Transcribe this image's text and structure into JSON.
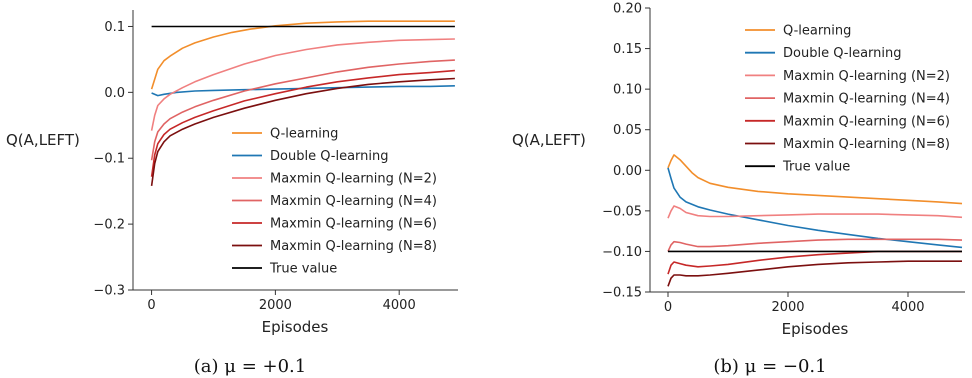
{
  "chart_data": [
    {
      "type": "line",
      "xlabel": "Episodes",
      "ylabel": "Q(A,LEFT)",
      "caption": "(a) μ = +0.1",
      "xlim": [
        -300,
        4950
      ],
      "ylim": [
        -0.3,
        0.125
      ],
      "xticks": [
        0,
        2000,
        4000
      ],
      "xtick_labels": [
        "0",
        "2000",
        "4000"
      ],
      "yticks": [
        -0.3,
        -0.2,
        -0.1,
        0.0,
        0.1
      ],
      "ytick_labels": [
        "−0.3",
        "−0.2",
        "−0.1",
        "0.0",
        "0.1"
      ],
      "legend_position": "lower-right",
      "series": [
        {
          "name": "Q-learning",
          "color": "#f28e2b",
          "x": [
            0,
            50,
            100,
            200,
            300,
            500,
            700,
            1000,
            1300,
            1600,
            2000,
            2500,
            3000,
            3500,
            4000,
            4500,
            4900
          ],
          "y": [
            0.005,
            0.02,
            0.035,
            0.048,
            0.055,
            0.067,
            0.075,
            0.084,
            0.091,
            0.096,
            0.101,
            0.105,
            0.107,
            0.108,
            0.108,
            0.108,
            0.108
          ]
        },
        {
          "name": "Double Q-learning",
          "color": "#1f77b4",
          "x": [
            0,
            100,
            200,
            400,
            700,
            1000,
            1500,
            2000,
            2500,
            3000,
            3500,
            4000,
            4500,
            4900
          ],
          "y": [
            -0.001,
            -0.005,
            -0.003,
            0.0,
            0.002,
            0.003,
            0.004,
            0.005,
            0.006,
            0.007,
            0.008,
            0.009,
            0.009,
            0.01
          ]
        },
        {
          "name": "Maxmin Q-learning (N=2)",
          "color": "#f08080",
          "x": [
            0,
            50,
            100,
            200,
            300,
            500,
            700,
            1000,
            1500,
            2000,
            2500,
            3000,
            3500,
            4000,
            4500,
            4900
          ],
          "y": [
            -0.058,
            -0.035,
            -0.02,
            -0.01,
            -0.003,
            0.007,
            0.016,
            0.027,
            0.043,
            0.056,
            0.065,
            0.072,
            0.076,
            0.079,
            0.08,
            0.081
          ]
        },
        {
          "name": "Maxmin Q-learning (N=4)",
          "color": "#e06464",
          "x": [
            0,
            50,
            100,
            200,
            300,
            500,
            700,
            1000,
            1500,
            2000,
            2500,
            3000,
            3500,
            4000,
            4500,
            4900
          ],
          "y": [
            -0.103,
            -0.075,
            -0.06,
            -0.048,
            -0.04,
            -0.03,
            -0.022,
            -0.012,
            0.002,
            0.013,
            0.022,
            0.031,
            0.038,
            0.043,
            0.047,
            0.049
          ]
        },
        {
          "name": "Maxmin Q-learning (N=6)",
          "color": "#c62828",
          "x": [
            0,
            50,
            100,
            200,
            300,
            500,
            700,
            1000,
            1500,
            2000,
            2500,
            3000,
            3500,
            4000,
            4500,
            4900
          ],
          "y": [
            -0.128,
            -0.095,
            -0.078,
            -0.064,
            -0.056,
            -0.046,
            -0.038,
            -0.028,
            -0.013,
            -0.002,
            0.008,
            0.016,
            0.022,
            0.027,
            0.03,
            0.033
          ]
        },
        {
          "name": "Maxmin Q-learning (N=8)",
          "color": "#7b0f0f",
          "x": [
            0,
            50,
            100,
            200,
            300,
            500,
            700,
            1000,
            1500,
            2000,
            2500,
            3000,
            3500,
            4000,
            4500,
            4900
          ],
          "y": [
            -0.142,
            -0.108,
            -0.09,
            -0.075,
            -0.066,
            -0.056,
            -0.048,
            -0.038,
            -0.024,
            -0.012,
            -0.002,
            0.006,
            0.012,
            0.016,
            0.019,
            0.021
          ]
        },
        {
          "name": "True value",
          "color": "#000000",
          "x": [
            0,
            4900
          ],
          "y": [
            0.1,
            0.1
          ]
        }
      ]
    },
    {
      "type": "line",
      "xlabel": "Episodes",
      "ylabel": "Q(A,LEFT)",
      "caption": "(b) μ = −0.1",
      "xlim": [
        -300,
        4950
      ],
      "ylim": [
        -0.15,
        0.2
      ],
      "xticks": [
        0,
        2000,
        4000
      ],
      "xtick_labels": [
        "0",
        "2000",
        "4000"
      ],
      "yticks": [
        -0.15,
        -0.1,
        -0.05,
        0.0,
        0.05,
        0.1,
        0.15,
        0.2
      ],
      "ytick_labels": [
        "−0.15",
        "−0.10",
        "−0.05",
        "0.00",
        "0.05",
        "0.10",
        "0.15",
        "0.20"
      ],
      "legend_position": "upper-right",
      "series": [
        {
          "name": "Q-learning",
          "color": "#f28e2b",
          "x": [
            0,
            50,
            100,
            200,
            300,
            400,
            500,
            700,
            1000,
            1500,
            2000,
            2500,
            3000,
            3500,
            4000,
            4500,
            4900
          ],
          "y": [
            0.003,
            0.012,
            0.019,
            0.013,
            0.005,
            -0.003,
            -0.009,
            -0.016,
            -0.021,
            -0.026,
            -0.029,
            -0.031,
            -0.033,
            -0.035,
            -0.037,
            -0.039,
            -0.041
          ]
        },
        {
          "name": "Double Q-learning",
          "color": "#1f77b4",
          "x": [
            0,
            50,
            100,
            200,
            300,
            500,
            700,
            1000,
            1500,
            2000,
            2500,
            3000,
            3500,
            4000,
            4500,
            4900
          ],
          "y": [
            0.003,
            -0.01,
            -0.022,
            -0.033,
            -0.039,
            -0.045,
            -0.049,
            -0.054,
            -0.061,
            -0.068,
            -0.074,
            -0.079,
            -0.084,
            -0.088,
            -0.092,
            -0.095
          ]
        },
        {
          "name": "Maxmin Q-learning (N=2)",
          "color": "#f08080",
          "x": [
            0,
            50,
            100,
            200,
            300,
            500,
            700,
            1000,
            1500,
            2000,
            2500,
            3000,
            3500,
            4000,
            4500,
            4900
          ],
          "y": [
            -0.059,
            -0.05,
            -0.044,
            -0.047,
            -0.052,
            -0.056,
            -0.057,
            -0.057,
            -0.056,
            -0.055,
            -0.054,
            -0.054,
            -0.054,
            -0.055,
            -0.056,
            -0.058
          ]
        },
        {
          "name": "Maxmin Q-learning (N=4)",
          "color": "#e06464",
          "x": [
            0,
            50,
            100,
            200,
            300,
            500,
            700,
            1000,
            1500,
            2000,
            2500,
            3000,
            3500,
            4000,
            4500,
            4900
          ],
          "y": [
            -0.1,
            -0.092,
            -0.088,
            -0.089,
            -0.091,
            -0.094,
            -0.094,
            -0.093,
            -0.09,
            -0.088,
            -0.086,
            -0.085,
            -0.085,
            -0.085,
            -0.085,
            -0.086
          ]
        },
        {
          "name": "Maxmin Q-learning (N=6)",
          "color": "#c62828",
          "x": [
            0,
            50,
            100,
            200,
            300,
            500,
            700,
            1000,
            1500,
            2000,
            2500,
            3000,
            3500,
            4000,
            4500,
            4900
          ],
          "y": [
            -0.128,
            -0.117,
            -0.113,
            -0.115,
            -0.117,
            -0.119,
            -0.118,
            -0.116,
            -0.111,
            -0.107,
            -0.104,
            -0.102,
            -0.1,
            -0.1,
            -0.1,
            -0.1
          ]
        },
        {
          "name": "Maxmin Q-learning (N=8)",
          "color": "#7b0f0f",
          "x": [
            0,
            50,
            100,
            200,
            300,
            500,
            700,
            1000,
            1500,
            2000,
            2500,
            3000,
            3500,
            4000,
            4500,
            4900
          ],
          "y": [
            -0.143,
            -0.133,
            -0.129,
            -0.129,
            -0.13,
            -0.13,
            -0.129,
            -0.127,
            -0.123,
            -0.119,
            -0.116,
            -0.114,
            -0.113,
            -0.112,
            -0.112,
            -0.112
          ]
        },
        {
          "name": "True value",
          "color": "#000000",
          "x": [
            0,
            4900
          ],
          "y": [
            -0.1,
            -0.1
          ]
        }
      ]
    }
  ]
}
